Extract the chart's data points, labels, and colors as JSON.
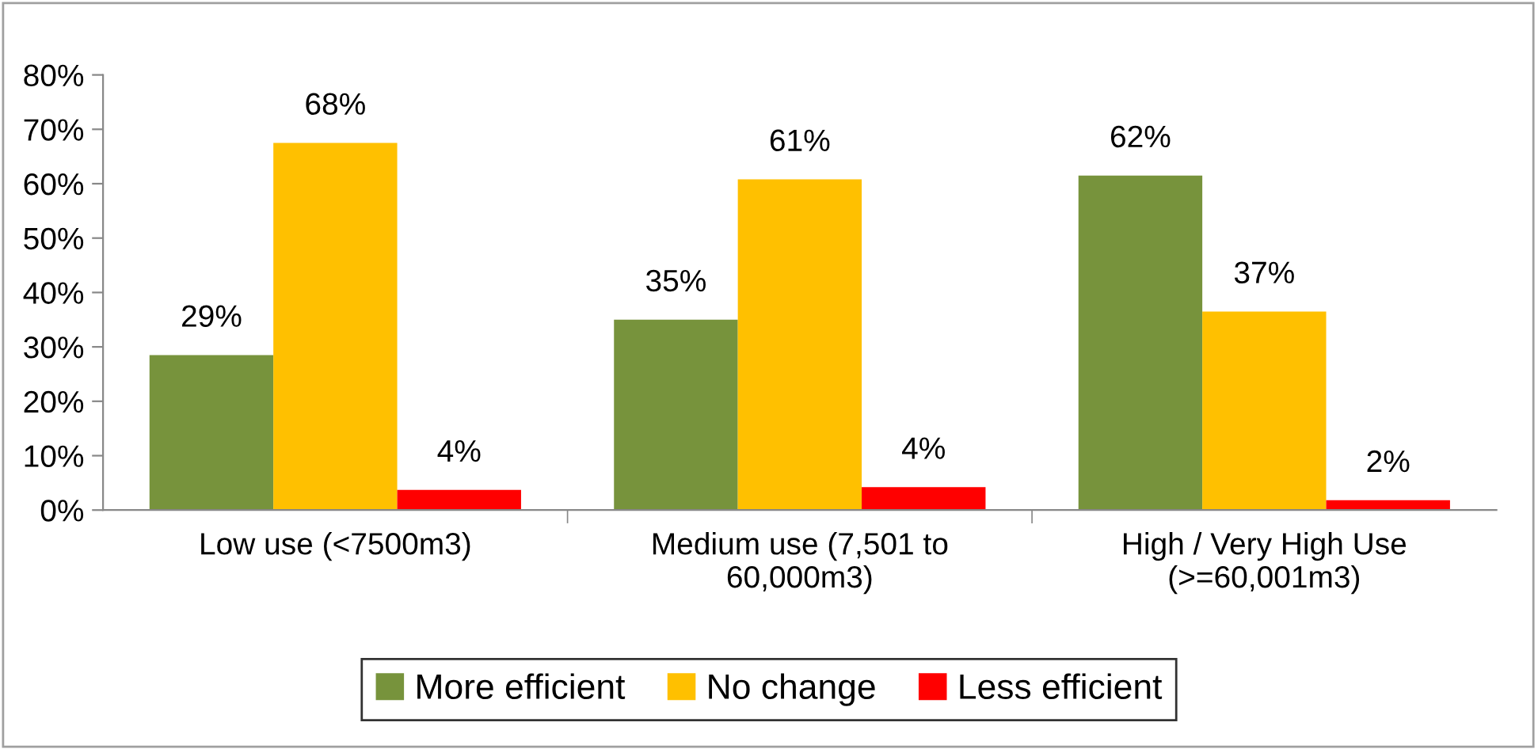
{
  "chart_data": {
    "type": "bar",
    "categories": [
      "Low use (<7500m3)",
      "Medium use (7,501 to\n60,000m3)",
      "High / Very High Use\n(>=60,001m3)"
    ],
    "series": [
      {
        "name": "More efficient",
        "color": "#77933c",
        "values": [
          28.5,
          35,
          61.5
        ],
        "value_labels": [
          "29%",
          "35%",
          "62%"
        ]
      },
      {
        "name": "No change",
        "color": "#ffc000",
        "values": [
          67.5,
          60.8,
          36.5
        ],
        "value_labels": [
          "68%",
          "61%",
          "37%"
        ]
      },
      {
        "name": "Less efficient",
        "color": "#ff0000",
        "values": [
          3.7,
          4.2,
          1.8
        ],
        "value_labels": [
          "4%",
          "4%",
          "2%"
        ]
      }
    ],
    "ylim": [
      0,
      80
    ],
    "yticks": [
      {
        "value": 0,
        "label": "0%"
      },
      {
        "value": 10,
        "label": "10%"
      },
      {
        "value": 20,
        "label": "20%"
      },
      {
        "value": 30,
        "label": "30%"
      },
      {
        "value": 40,
        "label": "40%"
      },
      {
        "value": 50,
        "label": "50%"
      },
      {
        "value": 60,
        "label": "60%"
      },
      {
        "value": 70,
        "label": "70%"
      },
      {
        "value": 80,
        "label": "80%"
      }
    ],
    "grid": false,
    "legend": "bottom"
  }
}
